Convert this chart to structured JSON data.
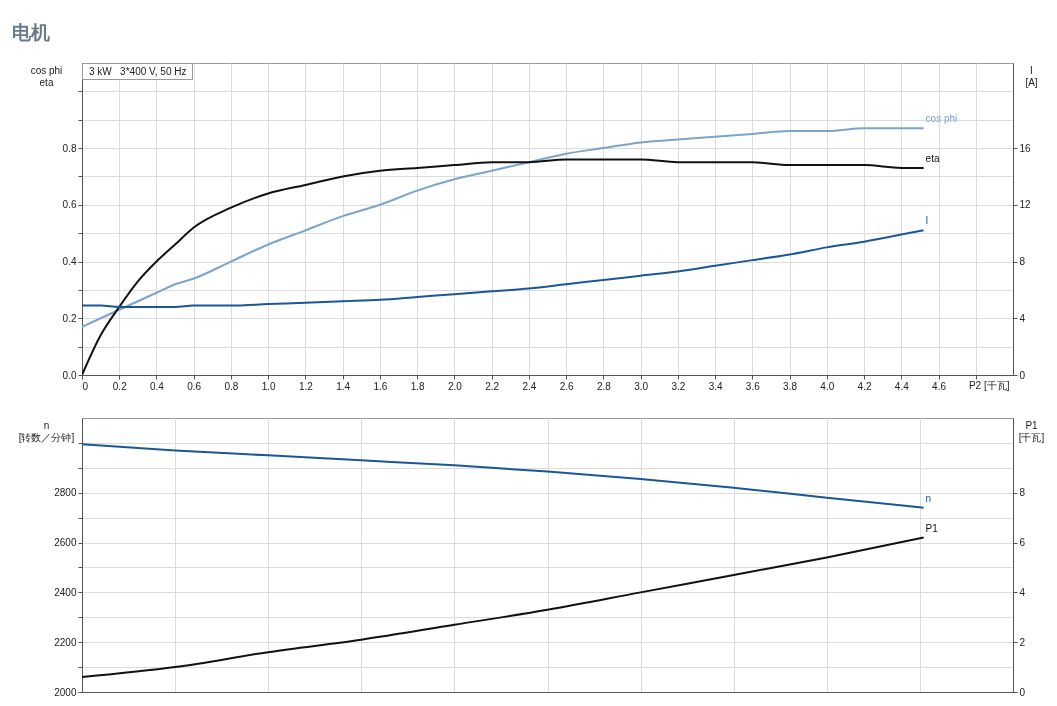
{
  "chart_data": [
    {
      "type": "line",
      "title": "电机",
      "xlabel": "P2 [千瓦]",
      "ylabel": "cos phi\neta",
      "y2label": "I\n[A]",
      "annotations": [
        "3 kW   3*400 V, 50 Hz"
      ],
      "grid": true,
      "x": [
        0,
        0.1,
        0.2,
        0.3,
        0.4,
        0.5,
        0.6,
        0.8,
        1.0,
        1.2,
        1.4,
        1.6,
        1.8,
        2.0,
        2.2,
        2.4,
        2.6,
        2.8,
        3.0,
        3.2,
        3.4,
        3.6,
        3.8,
        4.0,
        4.2,
        4.4,
        4.52
      ],
      "xlim": [
        0,
        5
      ],
      "xticks": [
        0,
        0.2,
        0.4,
        0.6,
        0.8,
        {
          "value": 1,
          "label": "1.0"
        },
        1.2,
        1.4,
        1.6,
        1.8,
        {
          "value": 2,
          "label": "2.0"
        },
        2.2,
        2.4,
        2.6,
        2.8,
        {
          "value": 3,
          "label": "3.0"
        },
        3.2,
        3.4,
        3.6,
        3.8,
        {
          "value": 4,
          "label": "4.0"
        },
        4.2,
        4.4,
        4.6,
        {
          "value": 4.8,
          "label": null
        }
      ],
      "ylim": [
        0,
        1.1
      ],
      "yticks": [
        {
          "value": 0,
          "label": "0.0"
        },
        {
          "value": 0.1,
          "label": null
        },
        0.2,
        {
          "value": 0.3,
          "label": null
        },
        0.4,
        {
          "value": 0.5,
          "label": null
        },
        0.6,
        {
          "value": 0.7,
          "label": null
        },
        0.8,
        {
          "value": 0.9,
          "label": null
        },
        {
          "value": 1,
          "label": null
        }
      ],
      "y2lim": [
        0,
        22
      ],
      "y2ticks": [
        0,
        4,
        8,
        12,
        16
      ],
      "series": [
        {
          "name": "cos phi",
          "color": "#7ba4cc",
          "values": [
            0.17,
            0.2,
            0.23,
            0.26,
            0.29,
            0.32,
            0.34,
            0.4,
            0.46,
            0.51,
            0.56,
            0.6,
            0.65,
            0.69,
            0.72,
            0.75,
            0.78,
            0.8,
            0.82,
            0.83,
            0.84,
            0.85,
            0.86,
            0.86,
            0.87,
            0.87,
            0.87
          ]
        },
        {
          "name": "eta",
          "color": "#111111",
          "values": [
            0,
            0.14,
            0.24,
            0.33,
            0.4,
            0.46,
            0.52,
            0.59,
            0.64,
            0.67,
            0.7,
            0.72,
            0.73,
            0.74,
            0.75,
            0.75,
            0.76,
            0.76,
            0.76,
            0.75,
            0.75,
            0.75,
            0.74,
            0.74,
            0.74,
            0.73,
            0.73
          ]
        },
        {
          "name": "I",
          "color": "#1a5799",
          "axis": "y2",
          "values": [
            4.9,
            4.9,
            4.8,
            4.8,
            4.8,
            4.8,
            4.9,
            4.9,
            5.0,
            5.1,
            5.2,
            5.3,
            5.5,
            5.7,
            5.9,
            6.1,
            6.4,
            6.7,
            7.0,
            7.3,
            7.7,
            8.1,
            8.5,
            9.0,
            9.4,
            9.9,
            10.2
          ]
        }
      ]
    },
    {
      "type": "line",
      "ylabel": "n\n[转数／分钟]",
      "y2label": "P1\n[千瓦]",
      "grid": true,
      "tick_labels": "y",
      "x": [
        0,
        0.5,
        1.0,
        1.5,
        2.0,
        2.5,
        3.0,
        3.5,
        4.0,
        4.52
      ],
      "xlim": [
        0,
        5
      ],
      "xticks": [
        {
          "value": 0,
          "label": null
        },
        {
          "value": 0.5,
          "label": null
        },
        {
          "value": 1,
          "label": null
        },
        {
          "value": 1.5,
          "label": null
        },
        {
          "value": 2,
          "label": null
        },
        {
          "value": 2.5,
          "label": null
        },
        {
          "value": 3,
          "label": null
        },
        {
          "value": 3.5,
          "label": null
        },
        {
          "value": 4,
          "label": null
        },
        {
          "value": 4.5,
          "label": null
        }
      ],
      "ylim": [
        2000,
        3100
      ],
      "yticks": [
        2000,
        {
          "value": 2100,
          "label": null
        },
        2200,
        {
          "value": 2300,
          "label": null
        },
        2400,
        {
          "value": 2500,
          "label": null
        },
        2600,
        {
          "value": 2700,
          "label": null
        },
        2800,
        {
          "value": 2900,
          "label": null
        },
        {
          "value": 3000,
          "label": null
        }
      ],
      "y2lim": [
        0,
        11
      ],
      "y2ticks": [
        0,
        2,
        4,
        6,
        8
      ],
      "series": [
        {
          "name": "n",
          "color": "#1a5799",
          "values": [
            2995,
            2970,
            2950,
            2930,
            2910,
            2885,
            2855,
            2820,
            2780,
            2740
          ]
        },
        {
          "name": "P1",
          "color": "#111111",
          "axis": "y2",
          "values": [
            0.6,
            1.0,
            1.6,
            2.1,
            2.7,
            3.3,
            4.0,
            4.7,
            5.4,
            6.2
          ]
        }
      ]
    }
  ]
}
